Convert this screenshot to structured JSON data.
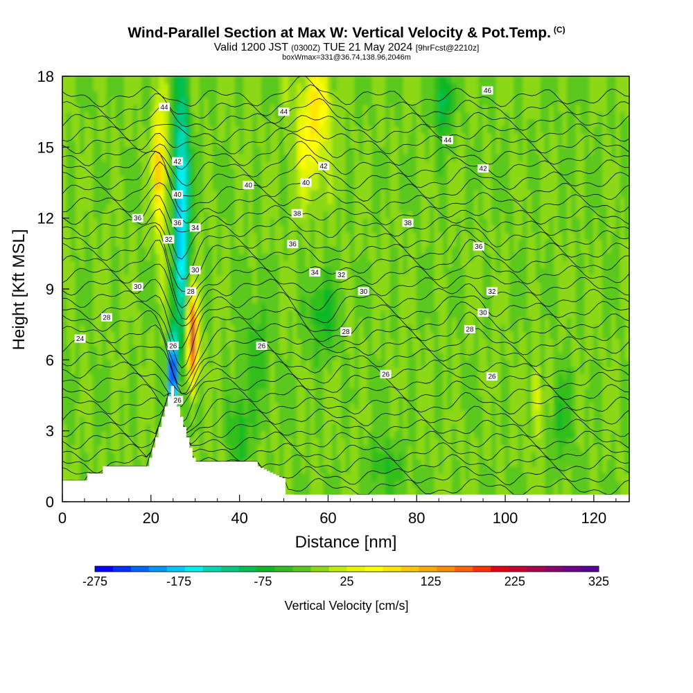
{
  "header": {
    "title": "Wind-Parallel Section at Max W: Vertical Velocity & Pot.Temp.",
    "copyright": "(C)",
    "valid_prefix": "Valid 1200 JST",
    "valid_utc": "(0300Z)",
    "valid_date": "TUE 21 May 2024",
    "forecast": "[9hrFcst@2210z]",
    "box_info": "boxWmax=331@36.74,138.96,2046m"
  },
  "chart_data": {
    "type": "heatmap",
    "title": "Wind-Parallel Section at Max W: Vertical Velocity & Pot.Temp.",
    "xlabel": "Distance [nm]",
    "ylabel": "Height [Kft MSL]",
    "xlim": [
      0,
      128
    ],
    "ylim": [
      0,
      18
    ],
    "x_ticks": [
      "0",
      "20",
      "40",
      "60",
      "80",
      "100",
      "120"
    ],
    "y_ticks": [
      "0",
      "3",
      "6",
      "9",
      "12",
      "15",
      "18"
    ],
    "colorbar": {
      "label": "Vertical Velocity [cm/s]",
      "tick_labels": [
        "-275",
        "-175",
        "-75",
        "25",
        "125",
        "225",
        "325"
      ],
      "range": [
        -275,
        325
      ],
      "step": 25,
      "colors": [
        "#0000ff",
        "#0030ff",
        "#0064ff",
        "#0096ff",
        "#00c8ff",
        "#00f0f0",
        "#00d8b4",
        "#00c880",
        "#00c050",
        "#10b828",
        "#32bf1e",
        "#5ac81a",
        "#8cd814",
        "#c0ec0a",
        "#e8f500",
        "#ffff00",
        "#ffe600",
        "#ffc800",
        "#ffaa00",
        "#ff8c00",
        "#ff6400",
        "#ff3200",
        "#e60014",
        "#c80032",
        "#aa0050",
        "#8c006e",
        "#6e008c",
        "#550099"
      ]
    },
    "contour_variable": "Potential Temperature",
    "contour_labels": [
      "24",
      "26",
      "26",
      "26",
      "26",
      "26",
      "28",
      "28",
      "28",
      "28",
      "30",
      "30",
      "30",
      "30",
      "32",
      "32",
      "32",
      "34",
      "34",
      "36",
      "36",
      "36",
      "36",
      "38",
      "38",
      "40",
      "40",
      "40",
      "42",
      "42",
      "42",
      "44",
      "44",
      "44",
      "46"
    ],
    "max_updraft_cm_s": 331,
    "max_updraft_location": "36.74,138.96",
    "max_updraft_height_m": 2046
  }
}
